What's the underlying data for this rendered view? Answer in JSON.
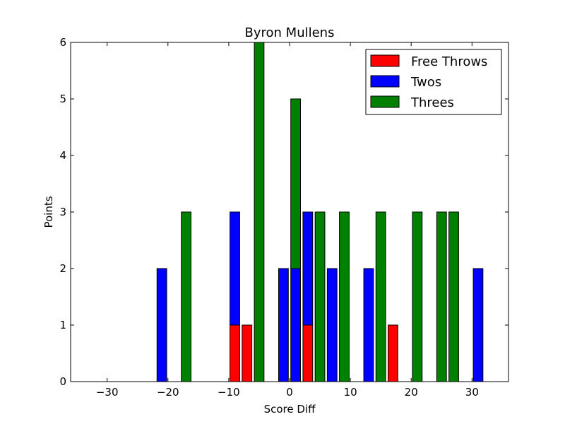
{
  "chart_data": {
    "type": "bar",
    "title": "Byron Mullens",
    "xlabel": "Score Diff",
    "ylabel": "Points",
    "xlim": [
      -36,
      36
    ],
    "ylim": [
      0,
      6
    ],
    "xticks": [
      -30,
      -20,
      -10,
      0,
      10,
      20,
      30
    ],
    "xtick_labels": [
      "−30",
      "−20",
      "−10",
      "0",
      "10",
      "20",
      "30"
    ],
    "yticks": [
      0,
      1,
      2,
      3,
      4,
      5,
      6
    ],
    "ytick_labels": [
      "0",
      "1",
      "2",
      "3",
      "4",
      "5",
      "6"
    ],
    "stacked": true,
    "legend_position": "top-right",
    "x": [
      -35,
      -33,
      -31,
      -29,
      -27,
      -25,
      -23,
      -21,
      -19,
      -17,
      -15,
      -13,
      -11,
      -9,
      -7,
      -5,
      -3,
      -1,
      1,
      3,
      5,
      7,
      9,
      11,
      13,
      15,
      17,
      19,
      21,
      23,
      25,
      27,
      29,
      31,
      33,
      35
    ],
    "series": [
      {
        "name": "Free Throws",
        "color": "#ff0000",
        "values": [
          0,
          0,
          0,
          0,
          0,
          0,
          0,
          0,
          0,
          0,
          0,
          0,
          0,
          1,
          1,
          0,
          0,
          0,
          0,
          1,
          0,
          0,
          0,
          0,
          0,
          0,
          1,
          0,
          0,
          0,
          0,
          0,
          0,
          0,
          0,
          0
        ]
      },
      {
        "name": "Twos",
        "color": "#0000ff",
        "values": [
          0,
          0,
          0,
          0,
          0,
          0,
          0,
          2,
          0,
          0,
          0,
          0,
          0,
          2,
          0,
          0,
          0,
          2,
          2,
          2,
          0,
          2,
          0,
          0,
          2,
          0,
          0,
          0,
          0,
          0,
          0,
          0,
          0,
          2,
          0,
          0
        ]
      },
      {
        "name": "Threes",
        "color": "#008000",
        "values": [
          0,
          0,
          0,
          0,
          0,
          0,
          0,
          0,
          0,
          3,
          0,
          0,
          0,
          0,
          0,
          6,
          0,
          0,
          3,
          0,
          3,
          0,
          3,
          0,
          0,
          3,
          0,
          0,
          3,
          0,
          3,
          3,
          0,
          0,
          0,
          0
        ]
      }
    ]
  }
}
